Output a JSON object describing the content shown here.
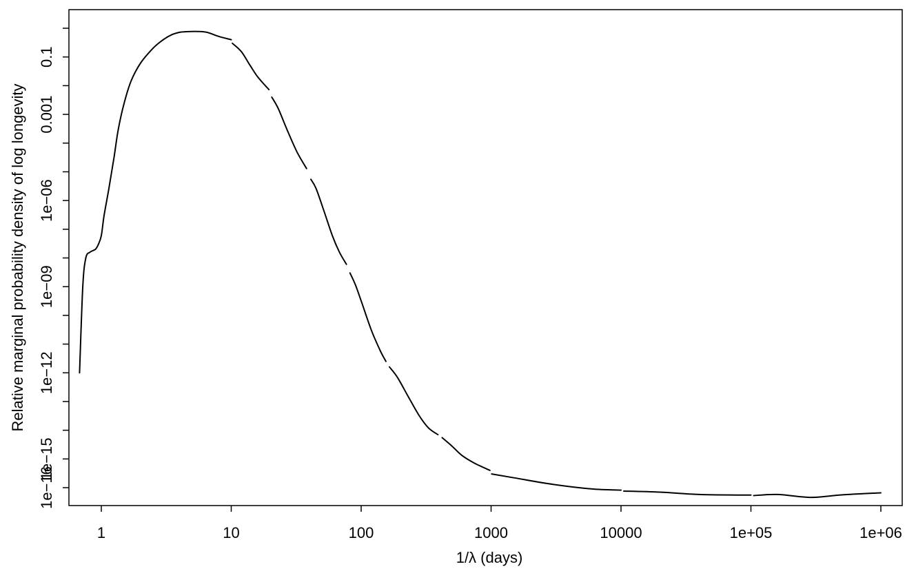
{
  "chart_data": {
    "type": "line",
    "title": "",
    "xlabel": "1/λ (days)",
    "ylabel": "Relative marginal probability density of log longevity",
    "x_scale": "log",
    "y_scale": "log",
    "xlim": [
      0.62,
      1500000
    ],
    "ylim": [
      1e-16,
      8
    ],
    "grid": false,
    "legend": "none",
    "colors": {
      "line": "#000000",
      "axis": "#000000",
      "background": "#ffffff"
    },
    "x_ticks": [
      {
        "value": 1,
        "label": "1"
      },
      {
        "value": 10,
        "label": "10"
      },
      {
        "value": 100,
        "label": "100"
      },
      {
        "value": 1000,
        "label": "1000"
      },
      {
        "value": 10000,
        "label": "10000"
      },
      {
        "value": 100000,
        "label": "1e+05"
      },
      {
        "value": 1000000,
        "label": "1e+06"
      }
    ],
    "y_ticks": [
      {
        "value": 1,
        "label": ""
      },
      {
        "value": 0.1,
        "label": "0.1"
      },
      {
        "value": 0.01,
        "label": ""
      },
      {
        "value": 0.001,
        "label": "0.001"
      },
      {
        "value": 0.0001,
        "label": ""
      },
      {
        "value": 1e-05,
        "label": ""
      },
      {
        "value": 1e-06,
        "label": "1e−06"
      },
      {
        "value": 1e-07,
        "label": ""
      },
      {
        "value": 1e-08,
        "label": ""
      },
      {
        "value": 1e-09,
        "label": "1e−09"
      },
      {
        "value": 1e-10,
        "label": ""
      },
      {
        "value": 1e-11,
        "label": ""
      },
      {
        "value": 1e-12,
        "label": "1e−12"
      },
      {
        "value": 1e-13,
        "label": ""
      },
      {
        "value": 1e-14,
        "label": ""
      },
      {
        "value": 1e-15,
        "label": "1e−15"
      },
      {
        "value": 1e-16,
        "label": "1e−16"
      }
    ],
    "series": [
      {
        "segments": [
          [
            [
              0.68,
              1e-12
            ],
            [
              0.72,
              1e-09
            ],
            [
              0.76,
              1e-08
            ],
            [
              0.82,
              1.6e-08
            ],
            [
              0.9,
              2e-08
            ],
            [
              0.95,
              3e-08
            ],
            [
              1.0,
              6e-08
            ],
            [
              1.05,
              3e-07
            ],
            [
              1.15,
              3e-06
            ],
            [
              1.25,
              3e-05
            ],
            [
              1.35,
              0.0003
            ],
            [
              1.5,
              0.0025
            ],
            [
              1.7,
              0.015
            ],
            [
              2.0,
              0.06
            ],
            [
              2.5,
              0.2
            ],
            [
              3.0,
              0.4
            ],
            [
              3.5,
              0.6
            ],
            [
              4.0,
              0.72
            ],
            [
              4.5,
              0.76
            ],
            [
              5.5,
              0.77
            ],
            [
              6.5,
              0.72
            ],
            [
              8.0,
              0.52
            ],
            [
              10.0,
              0.4
            ]
          ],
          [
            [
              10.2,
              0.3
            ],
            [
              12,
              0.15
            ],
            [
              14,
              0.05
            ],
            [
              16,
              0.02
            ],
            [
              19.5,
              0.0073
            ]
          ],
          [
            [
              20.5,
              0.004
            ],
            [
              23,
              0.0016
            ],
            [
              27,
              0.00028
            ],
            [
              32,
              5e-05
            ],
            [
              38,
              1.3e-05
            ]
          ],
          [
            [
              41,
              5.5e-06
            ],
            [
              45,
              2.6e-06
            ],
            [
              52,
              4e-07
            ],
            [
              60,
              6e-08
            ],
            [
              68,
              1.6e-08
            ],
            [
              77,
              6e-09
            ]
          ],
          [
            [
              82,
              3e-09
            ],
            [
              90,
              1.2e-09
            ],
            [
              100,
              3.2e-10
            ],
            [
              120,
              3e-11
            ],
            [
              140,
              6e-12
            ],
            [
              155,
              2.5e-12
            ]
          ],
          [
            [
              165,
              1.6e-12
            ],
            [
              190,
              7e-13
            ],
            [
              230,
              1.5e-13
            ],
            [
              280,
              3.2e-14
            ],
            [
              330,
              1.2e-14
            ],
            [
              390,
              7e-15
            ]
          ],
          [
            [
              420,
              5.5e-15
            ],
            [
              500,
              2.8e-15
            ],
            [
              600,
              1.3e-15
            ],
            [
              750,
              7e-16
            ],
            [
              980,
              4e-16
            ]
          ],
          [
            [
              1010,
              3e-16
            ],
            [
              1500,
              2.2e-16
            ],
            [
              3000,
              1.3e-16
            ],
            [
              6000,
              9e-17
            ],
            [
              10000,
              8.2e-17
            ]
          ],
          [
            [
              10500,
              7.6e-17
            ],
            [
              20000,
              7e-17
            ],
            [
              40000,
              5.8e-17
            ],
            [
              100000,
              5.5e-17
            ]
          ],
          [
            [
              105000,
              5.3e-17
            ],
            [
              160000,
              5.8e-17
            ],
            [
              290000,
              4.6e-17
            ],
            [
              500000,
              5.6e-17
            ],
            [
              1000000,
              6.6e-17
            ]
          ]
        ]
      }
    ]
  }
}
